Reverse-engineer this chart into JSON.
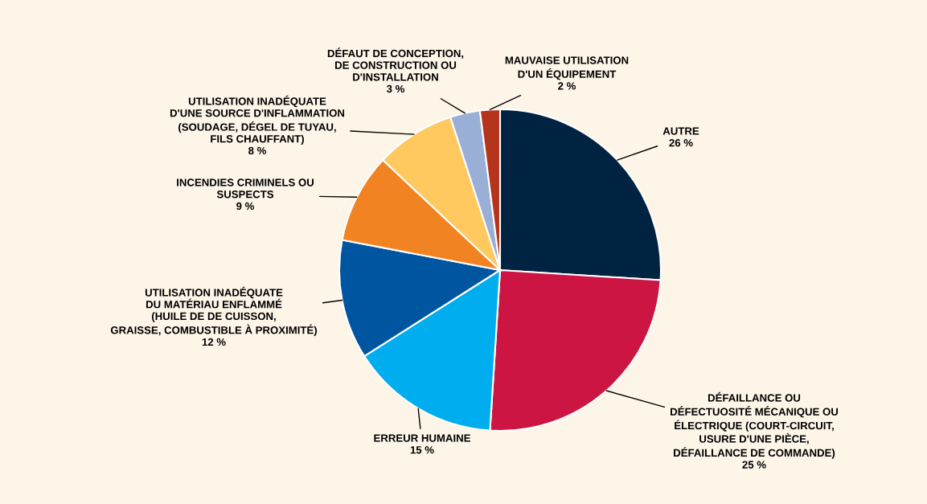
{
  "chart_data": {
    "type": "pie",
    "categories": [
      "AUTRE",
      "DÉFAILLANCE OU\nDÉFECTUOSITÉ MÉCANIQUE OU\nÉLECTRIQUE (COURT-CIRCUIT,\nUSURE D'UNE PIÈCE,\nDÉFAILLANCE DE COMMANDE)",
      "ERREUR HUMAINE",
      "UTILISATION INADÉQUATE\nDU MATÉRIAU ENFLAMMÉ\n(HUILE DE DE CUISSON,\nGRAISSE, COMBUSTIBLE À PROXIMITÉ)",
      "INCENDIES CRIMINELS OU\nSUSPECTS",
      "UTILISATION INADÉQUATE\nD'UNE SOURCE D'INFLAMMATION\n(SOUDAGE, DÉGEL DE TUYAU,\nFILS CHAUFFANT)",
      "DÉFAUT DE CONCEPTION,\nDE CONSTRUCTION OU\nD'INSTALLATION",
      "MAUVAISE UTILISATION\nD'UN ÉQUIPEMENT"
    ],
    "values": [
      26,
      25,
      15,
      12,
      9,
      8,
      3,
      2
    ],
    "colors": [
      "#002341",
      "#cc1543",
      "#00adef",
      "#0055a0",
      "#f28322",
      "#ffc95f",
      "#9aafd6",
      "#b5341c"
    ],
    "value_labels": [
      "26 %",
      "25 %",
      "15 %",
      "12 %",
      "9 %",
      "8 %",
      "3 %",
      "2 %"
    ]
  }
}
